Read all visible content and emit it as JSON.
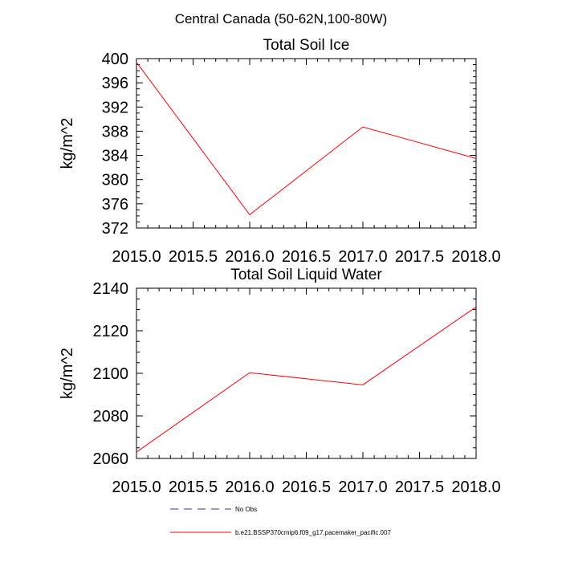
{
  "figure": {
    "title": "Central Canada (50-62N,100-80W)",
    "legend": [
      {
        "label": "No Obs",
        "color": "#3333aa",
        "style": "dashed"
      },
      {
        "label": "b.e21.BSSP370cmip6.f09_g17.pacemaker_pacific.007",
        "color": "#ff0000",
        "style": "solid"
      }
    ]
  },
  "chart_data": [
    {
      "type": "line",
      "title": "Total Soil Ice",
      "xlabel": "",
      "ylabel": "kg/m^2",
      "xlim": [
        2015.0,
        2018.0
      ],
      "ylim": [
        372,
        400
      ],
      "xticks": [
        "2015.0",
        "2015.5",
        "2016.0",
        "2016.5",
        "2017.0",
        "2017.5",
        "2018.0"
      ],
      "yticks": [
        "372",
        "376",
        "380",
        "384",
        "388",
        "392",
        "396",
        "400"
      ],
      "grid": false,
      "series": [
        {
          "name": "b.e21.BSSP370cmip6.f09_g17.pacemaker_pacific.007",
          "color": "#ff0000",
          "x": [
            2015.0,
            2016.0,
            2017.0,
            2018.0
          ],
          "y": [
            399.4,
            374.2,
            388.7,
            383.5
          ]
        }
      ]
    },
    {
      "type": "line",
      "title": "Total Soil Liquid Water",
      "xlabel": "",
      "ylabel": "kg/m^2",
      "xlim": [
        2015.0,
        2018.0
      ],
      "ylim": [
        2060,
        2140
      ],
      "xticks": [
        "2015.0",
        "2015.5",
        "2016.0",
        "2016.5",
        "2017.0",
        "2017.5",
        "2018.0"
      ],
      "yticks": [
        "2060",
        "2080",
        "2100",
        "2120",
        "2140"
      ],
      "grid": false,
      "series": [
        {
          "name": "b.e21.BSSP370cmip6.f09_g17.pacemaker_pacific.007",
          "color": "#ff0000",
          "x": [
            2015.0,
            2016.0,
            2017.0,
            2018.0
          ],
          "y": [
            2063.0,
            2100.3,
            2094.6,
            2131.2
          ]
        }
      ]
    }
  ]
}
